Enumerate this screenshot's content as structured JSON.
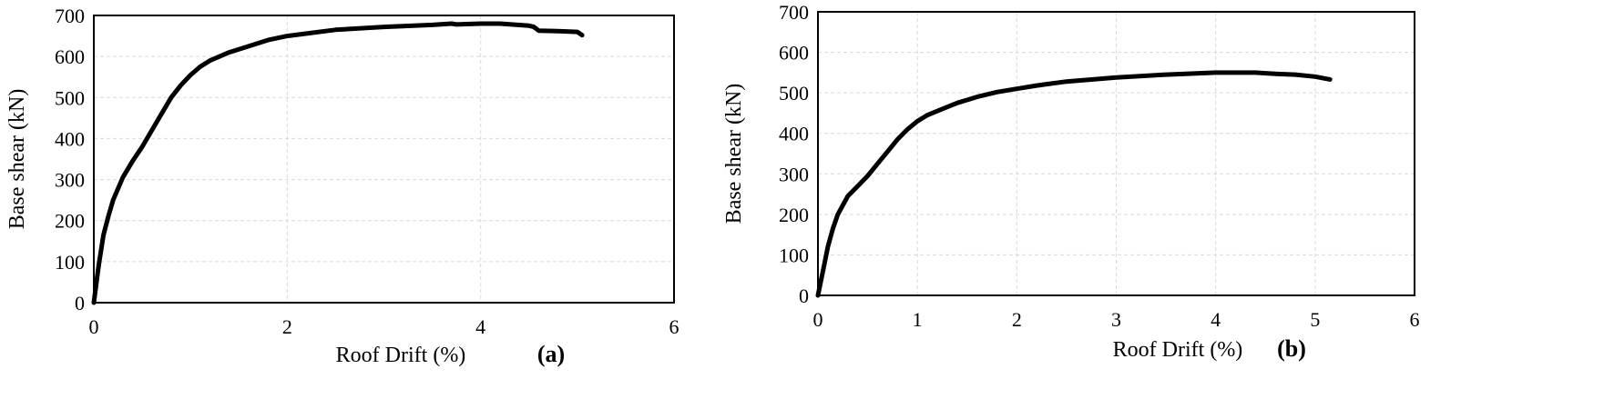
{
  "chart_data": [
    {
      "type": "line",
      "panel_label": "(a)",
      "xlabel": "Roof Drift (%)",
      "ylabel": "Base shear  (kN)",
      "xlim": [
        0,
        6
      ],
      "ylim": [
        0,
        700
      ],
      "xticks": [
        "0",
        "2",
        "4",
        "6"
      ],
      "yticks": [
        "0",
        "100",
        "200",
        "300",
        "400",
        "500",
        "600",
        "700"
      ],
      "grid": true,
      "series": [
        {
          "x": [
            0,
            0.05,
            0.1,
            0.15,
            0.2,
            0.3,
            0.4,
            0.5,
            0.6,
            0.7,
            0.8,
            0.9,
            1.0,
            1.1,
            1.2,
            1.4,
            1.6,
            1.8,
            2.0,
            2.2,
            2.5,
            3.0,
            3.5,
            3.7,
            3.75,
            4.0,
            4.2,
            4.5,
            4.55,
            4.6,
            4.8,
            5.0,
            5.05
          ],
          "y": [
            0,
            90,
            165,
            210,
            250,
            305,
            345,
            380,
            420,
            460,
            500,
            530,
            555,
            575,
            590,
            610,
            625,
            640,
            650,
            656,
            665,
            672,
            677,
            680,
            678,
            680,
            680,
            675,
            672,
            663,
            662,
            660,
            652
          ]
        }
      ]
    },
    {
      "type": "line",
      "panel_label": "(b)",
      "xlabel": "Roof Drift (%)",
      "ylabel": "Base shear (kN)",
      "xlim": [
        0,
        6
      ],
      "ylim": [
        0,
        700
      ],
      "xticks": [
        "0",
        "1",
        "2",
        "3",
        "4",
        "5",
        "6"
      ],
      "yticks": [
        "0",
        "100",
        "200",
        "300",
        "400",
        "500",
        "600",
        "700"
      ],
      "grid": true,
      "series": [
        {
          "x": [
            0,
            0.05,
            0.1,
            0.15,
            0.2,
            0.3,
            0.4,
            0.5,
            0.6,
            0.7,
            0.8,
            0.9,
            1.0,
            1.1,
            1.2,
            1.4,
            1.6,
            1.8,
            2.0,
            2.2,
            2.5,
            3.0,
            3.5,
            4.0,
            4.4,
            4.6,
            4.8,
            5.0,
            5.15
          ],
          "y": [
            0,
            60,
            120,
            165,
            200,
            245,
            270,
            295,
            325,
            355,
            385,
            410,
            430,
            445,
            455,
            475,
            490,
            502,
            510,
            518,
            528,
            538,
            545,
            550,
            550,
            547,
            545,
            540,
            533
          ]
        }
      ]
    }
  ]
}
